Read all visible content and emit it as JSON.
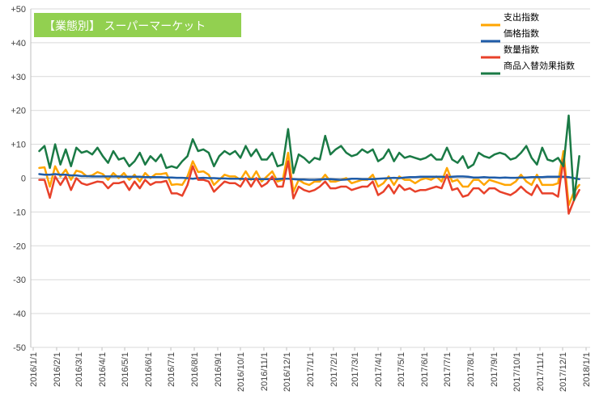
{
  "chart_data": {
    "type": "line",
    "title": "【業態別】 スーパーマーケット",
    "title_bg": "#92d050",
    "ylim": [
      -50,
      50
    ],
    "yticks": [
      "+50",
      "+40",
      "+30",
      "+20",
      "+10",
      "0",
      "-10",
      "-20",
      "-30",
      "-40",
      "-50"
    ],
    "ytick_values": [
      50,
      40,
      30,
      20,
      10,
      0,
      -10,
      -20,
      -30,
      -40,
      -50
    ],
    "x_start": "2016-01-01",
    "xticks": [
      "2016/1/1",
      "2016/2/1",
      "2016/3/1",
      "2016/4/1",
      "2016/5/1",
      "2016/6/1",
      "2016/7/1",
      "2016/8/1",
      "2016/9/1",
      "2016/10/1",
      "2016/11/1",
      "2016/12/1",
      "2017/1/1",
      "2017/2/1",
      "2017/3/1",
      "2017/4/1",
      "2017/5/1",
      "2017/6/1",
      "2017/7/1",
      "2017/8/1",
      "2017/9/1",
      "2017/10/1",
      "2017/11/1",
      "2017/12/1",
      "2018/1/1"
    ],
    "grid": true,
    "legend_position": "top-right",
    "series": [
      {
        "name": "支出指数",
        "color": "#ffa500",
        "values": [
          3.0,
          3.2,
          -2.5,
          3.5,
          0.5,
          2.5,
          -0.5,
          2.2,
          1.8,
          0.5,
          0.8,
          1.8,
          1.2,
          -0.5,
          1.5,
          0.0,
          1.5,
          -0.5,
          1.0,
          -1.0,
          1.5,
          0.0,
          1.2,
          1.2,
          1.5,
          -2.0,
          -1.8,
          -2.0,
          0.5,
          5.0,
          1.8,
          2.0,
          1.0,
          -2.0,
          -0.5,
          1.0,
          0.5,
          0.5,
          -0.5,
          2.0,
          -0.5,
          2.0,
          -1.0,
          0.5,
          2.0,
          -1.0,
          -0.5,
          7.5,
          -4.0,
          -0.5,
          -1.5,
          -2.0,
          -1.0,
          -1.0,
          1.0,
          -1.0,
          -1.0,
          -0.5,
          0.0,
          -1.5,
          -1.0,
          -0.5,
          -0.5,
          1.0,
          -2.5,
          -1.5,
          0.5,
          -2.0,
          0.5,
          -0.5,
          -0.5,
          -1.5,
          -0.5,
          0.0,
          -0.5,
          0.5,
          -1.0,
          3.0,
          -1.0,
          -0.5,
          -2.5,
          -2.5,
          -0.5,
          -0.5,
          -2.0,
          -0.5,
          -1.0,
          -1.5,
          -2.0,
          -2.0,
          -1.0,
          1.0,
          -1.0,
          -2.0,
          1.0,
          -2.0,
          -2.0,
          -2.0,
          -1.5,
          8.0,
          -8.0,
          -4.0,
          -2.0
        ]
      },
      {
        "name": "価格指数",
        "color": "#1f5ca8",
        "values": [
          1.2,
          1.0,
          1.0,
          1.2,
          1.0,
          1.0,
          0.8,
          0.8,
          0.6,
          0.6,
          0.5,
          0.5,
          0.5,
          0.5,
          0.5,
          0.5,
          0.4,
          0.4,
          0.4,
          0.4,
          0.3,
          0.3,
          0.3,
          0.3,
          0.2,
          0.2,
          0.1,
          0.1,
          0.0,
          -0.2,
          0.0,
          0.1,
          0.0,
          0.0,
          -0.1,
          -0.1,
          -0.2,
          -0.2,
          -0.2,
          -0.3,
          -0.3,
          -0.3,
          -0.3,
          -0.3,
          -0.3,
          -0.3,
          -0.2,
          -0.2,
          -0.3,
          -0.4,
          -0.4,
          -0.5,
          -0.5,
          -0.4,
          -0.3,
          -0.3,
          -0.4,
          -0.5,
          -0.4,
          -0.2,
          -0.2,
          -0.3,
          -0.3,
          -0.3,
          -0.2,
          -0.1,
          0.0,
          0.1,
          0.0,
          0.2,
          0.3,
          0.3,
          0.4,
          0.4,
          0.4,
          0.4,
          0.4,
          0.3,
          0.4,
          0.5,
          0.5,
          0.4,
          0.2,
          0.2,
          0.3,
          0.2,
          0.2,
          0.1,
          0.2,
          0.1,
          0.1,
          0.2,
          0.2,
          0.3,
          0.3,
          0.3,
          0.4,
          0.4,
          0.4,
          0.4,
          0.3,
          0.0,
          -0.3
        ]
      },
      {
        "name": "数量指数",
        "color": "#e8412a",
        "values": [
          -0.5,
          -0.5,
          -5.8,
          0.5,
          -2.0,
          0.5,
          -3.5,
          0.0,
          -1.5,
          -2.0,
          -1.5,
          -1.0,
          -1.2,
          -3.0,
          -1.5,
          -1.5,
          -1.0,
          -3.5,
          -1.0,
          -3.0,
          -0.5,
          -2.0,
          -1.2,
          -1.2,
          -0.8,
          -4.5,
          -4.5,
          -5.2,
          -2.0,
          3.5,
          -0.5,
          -0.5,
          -1.0,
          -4.0,
          -2.5,
          -1.0,
          -1.5,
          -1.5,
          -2.5,
          0.0,
          -2.5,
          0.0,
          -2.5,
          -1.5,
          0.5,
          -2.5,
          -2.5,
          5.0,
          -6.0,
          -2.5,
          -3.5,
          -4.0,
          -3.5,
          -2.5,
          -1.0,
          -3.0,
          -3.0,
          -2.5,
          -2.5,
          -3.5,
          -3.0,
          -2.5,
          -2.5,
          -1.0,
          -5.0,
          -4.0,
          -2.0,
          -4.5,
          -2.0,
          -3.5,
          -3.0,
          -4.0,
          -3.5,
          -3.5,
          -3.0,
          -2.5,
          -3.0,
          1.0,
          -3.5,
          -3.0,
          -5.5,
          -5.0,
          -3.0,
          -3.0,
          -4.5,
          -3.0,
          -3.0,
          -4.0,
          -4.5,
          -5.0,
          -4.0,
          -2.5,
          -4.0,
          -5.0,
          -2.0,
          -4.5,
          -4.5,
          -4.5,
          -5.5,
          5.5,
          -10.5,
          -6.5,
          -3.5
        ]
      },
      {
        "name": "商品入替効果指数",
        "color": "#1a7a45",
        "values": [
          8.0,
          9.5,
          3.0,
          10.0,
          4.0,
          8.5,
          3.5,
          9.0,
          7.5,
          8.0,
          7.0,
          9.0,
          6.5,
          4.5,
          8.0,
          5.5,
          6.0,
          3.5,
          5.0,
          7.5,
          4.0,
          6.5,
          5.0,
          7.0,
          3.0,
          3.5,
          3.0,
          5.0,
          6.5,
          11.5,
          8.0,
          8.5,
          7.5,
          3.5,
          6.5,
          8.0,
          7.0,
          8.0,
          6.0,
          9.5,
          6.5,
          8.5,
          5.5,
          5.5,
          7.5,
          3.5,
          4.0,
          14.5,
          1.5,
          7.0,
          6.0,
          4.5,
          6.0,
          5.5,
          12.5,
          7.0,
          8.5,
          9.5,
          7.5,
          6.5,
          7.0,
          8.5,
          7.5,
          8.5,
          5.0,
          6.0,
          8.5,
          5.0,
          7.5,
          6.0,
          6.5,
          6.0,
          5.5,
          6.0,
          7.0,
          5.5,
          5.5,
          9.0,
          5.5,
          4.5,
          6.5,
          3.0,
          4.0,
          7.5,
          6.5,
          6.0,
          7.0,
          7.5,
          7.0,
          5.5,
          6.0,
          7.5,
          9.5,
          6.0,
          4.0,
          9.0,
          5.5,
          5.0,
          6.0,
          3.5,
          18.5,
          -6.5,
          6.5
        ]
      }
    ]
  }
}
